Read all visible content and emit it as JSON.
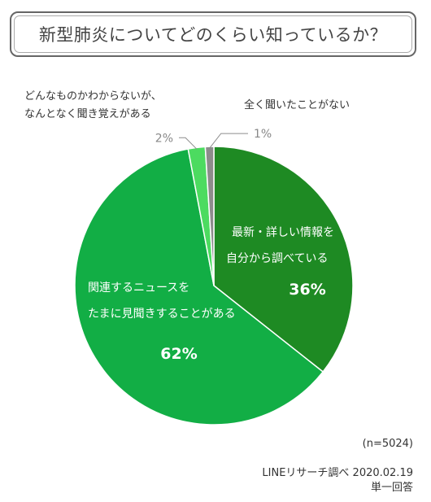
{
  "title": "新型肺炎についてどのくらい知っているか？",
  "chart_data": {
    "type": "pie",
    "slices": [
      {
        "label_lines": [
          "最新・詳しい情報を",
          "自分から調べている"
        ],
        "value": 36,
        "value_label": "36%",
        "color": "#1e8a23"
      },
      {
        "label_lines": [
          "関連するニュースを",
          "たまに見聞きすることがある"
        ],
        "value": 62,
        "value_label": "62%",
        "color": "#12ae45"
      },
      {
        "label_lines": [
          "どんなものかわからないが、",
          "なんとなく聞き覚えがある"
        ],
        "value": 2,
        "value_label": "2%",
        "color": "#4cdb60"
      },
      {
        "label_lines": [
          "全く聞いたことがない"
        ],
        "value": 1,
        "value_label": "1%",
        "color": "#8c8c8c"
      }
    ]
  },
  "footer": {
    "n": "(n=5024)",
    "source": "LINEリサーチ調べ 2020.02.19",
    "type": "単一回答"
  }
}
